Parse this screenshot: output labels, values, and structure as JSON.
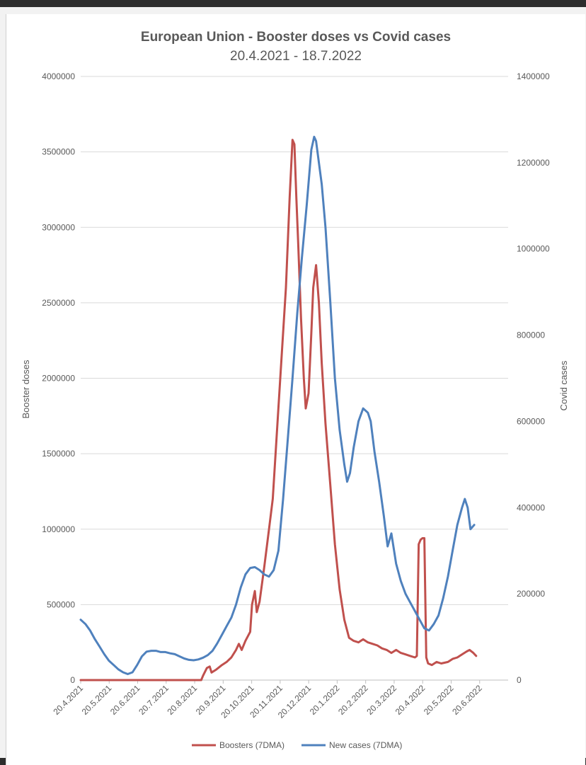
{
  "chart_data": {
    "type": "line",
    "title": "European Union - Booster doses vs Covid cases",
    "subtitle": "20.4.2021 - 18.7.2022",
    "ylabel": "Booster doses",
    "y2label": "Covid cases",
    "ylim": [
      0,
      4000000
    ],
    "y2lim": [
      0,
      1400000
    ],
    "yticks": [
      "0",
      "500000",
      "1000000",
      "1500000",
      "2000000",
      "2500000",
      "3000000",
      "3500000",
      "4000000"
    ],
    "y2ticks": [
      "0",
      "200000",
      "400000",
      "600000",
      "800000",
      "1000000",
      "1200000",
      "1400000"
    ],
    "x_categories": [
      "20.4.2021",
      "20.5.2021",
      "20.6.2021",
      "20.7.2021",
      "20.8.2021",
      "20.9.2021",
      "20.10.2021",
      "20.11.2021",
      "20.12.2021",
      "20.1.2022",
      "20.2.2022",
      "20.3.2022",
      "20.4.2022",
      "20.5.2022",
      "20.6.2022"
    ],
    "x_day_max": 454,
    "gridlines": "horizontal",
    "legend_position": "bottom",
    "series": [
      {
        "name": "Boosters (7DMA)",
        "axis": "left",
        "color": "#c0504d",
        "points": [
          [
            0,
            0
          ],
          [
            122,
            0
          ],
          [
            128,
            0
          ],
          [
            130,
            30000
          ],
          [
            134,
            80000
          ],
          [
            137,
            90000
          ],
          [
            139,
            50000
          ],
          [
            144,
            70000
          ],
          [
            150,
            100000
          ],
          [
            155,
            120000
          ],
          [
            160,
            150000
          ],
          [
            165,
            200000
          ],
          [
            168,
            240000
          ],
          [
            171,
            200000
          ],
          [
            175,
            260000
          ],
          [
            180,
            320000
          ],
          [
            182,
            500000
          ],
          [
            185,
            590000
          ],
          [
            187,
            450000
          ],
          [
            190,
            520000
          ],
          [
            195,
            750000
          ],
          [
            200,
            1000000
          ],
          [
            204,
            1200000
          ],
          [
            208,
            1600000
          ],
          [
            212,
            2000000
          ],
          [
            215,
            2300000
          ],
          [
            218,
            2600000
          ],
          [
            222,
            3200000
          ],
          [
            225,
            3580000
          ],
          [
            227,
            3550000
          ],
          [
            229,
            3200000
          ],
          [
            231,
            2900000
          ],
          [
            234,
            2400000
          ],
          [
            237,
            2000000
          ],
          [
            239,
            1800000
          ],
          [
            242,
            1900000
          ],
          [
            245,
            2300000
          ],
          [
            247,
            2600000
          ],
          [
            250,
            2750000
          ],
          [
            253,
            2500000
          ],
          [
            256,
            2100000
          ],
          [
            260,
            1700000
          ],
          [
            265,
            1300000
          ],
          [
            270,
            900000
          ],
          [
            275,
            600000
          ],
          [
            280,
            400000
          ],
          [
            285,
            280000
          ],
          [
            290,
            260000
          ],
          [
            295,
            250000
          ],
          [
            300,
            270000
          ],
          [
            305,
            250000
          ],
          [
            310,
            240000
          ],
          [
            315,
            230000
          ],
          [
            320,
            210000
          ],
          [
            325,
            200000
          ],
          [
            330,
            180000
          ],
          [
            335,
            200000
          ],
          [
            340,
            180000
          ],
          [
            345,
            170000
          ],
          [
            350,
            160000
          ],
          [
            355,
            150000
          ],
          [
            357,
            160000
          ],
          [
            359,
            900000
          ],
          [
            361,
            930000
          ],
          [
            363,
            940000
          ],
          [
            365,
            940000
          ],
          [
            367,
            150000
          ],
          [
            369,
            110000
          ],
          [
            373,
            100000
          ],
          [
            378,
            120000
          ],
          [
            383,
            110000
          ],
          [
            390,
            120000
          ],
          [
            395,
            140000
          ],
          [
            400,
            150000
          ],
          [
            405,
            170000
          ],
          [
            410,
            190000
          ],
          [
            413,
            200000
          ],
          [
            417,
            180000
          ],
          [
            420,
            160000
          ]
        ]
      },
      {
        "name": "New cases (7DMA)",
        "axis": "right",
        "color": "#4f81bd",
        "points": [
          [
            0,
            140000
          ],
          [
            5,
            130000
          ],
          [
            10,
            115000
          ],
          [
            15,
            95000
          ],
          [
            20,
            78000
          ],
          [
            25,
            60000
          ],
          [
            30,
            45000
          ],
          [
            35,
            35000
          ],
          [
            40,
            25000
          ],
          [
            45,
            18000
          ],
          [
            50,
            14000
          ],
          [
            55,
            18000
          ],
          [
            60,
            35000
          ],
          [
            65,
            55000
          ],
          [
            70,
            66000
          ],
          [
            75,
            68000
          ],
          [
            80,
            68000
          ],
          [
            85,
            65000
          ],
          [
            90,
            65000
          ],
          [
            95,
            62000
          ],
          [
            100,
            60000
          ],
          [
            105,
            55000
          ],
          [
            110,
            50000
          ],
          [
            115,
            47000
          ],
          [
            120,
            46000
          ],
          [
            125,
            48000
          ],
          [
            130,
            52000
          ],
          [
            135,
            58000
          ],
          [
            140,
            68000
          ],
          [
            145,
            85000
          ],
          [
            150,
            105000
          ],
          [
            155,
            125000
          ],
          [
            160,
            145000
          ],
          [
            165,
            175000
          ],
          [
            170,
            215000
          ],
          [
            175,
            245000
          ],
          [
            180,
            260000
          ],
          [
            185,
            262000
          ],
          [
            190,
            255000
          ],
          [
            195,
            245000
          ],
          [
            200,
            240000
          ],
          [
            205,
            255000
          ],
          [
            210,
            300000
          ],
          [
            215,
            420000
          ],
          [
            220,
            560000
          ],
          [
            225,
            700000
          ],
          [
            230,
            850000
          ],
          [
            235,
            980000
          ],
          [
            240,
            1100000
          ],
          [
            245,
            1230000
          ],
          [
            248,
            1260000
          ],
          [
            250,
            1250000
          ],
          [
            253,
            1200000
          ],
          [
            256,
            1150000
          ],
          [
            260,
            1050000
          ],
          [
            265,
            880000
          ],
          [
            270,
            700000
          ],
          [
            275,
            580000
          ],
          [
            280,
            500000
          ],
          [
            283,
            460000
          ],
          [
            286,
            480000
          ],
          [
            290,
            540000
          ],
          [
            295,
            600000
          ],
          [
            300,
            630000
          ],
          [
            305,
            620000
          ],
          [
            308,
            600000
          ],
          [
            312,
            530000
          ],
          [
            317,
            460000
          ],
          [
            322,
            380000
          ],
          [
            326,
            310000
          ],
          [
            330,
            340000
          ],
          [
            335,
            270000
          ],
          [
            340,
            230000
          ],
          [
            345,
            200000
          ],
          [
            350,
            180000
          ],
          [
            355,
            160000
          ],
          [
            360,
            140000
          ],
          [
            365,
            120000
          ],
          [
            370,
            115000
          ],
          [
            375,
            130000
          ],
          [
            380,
            150000
          ],
          [
            385,
            190000
          ],
          [
            390,
            240000
          ],
          [
            395,
            300000
          ],
          [
            400,
            360000
          ],
          [
            405,
            400000
          ],
          [
            408,
            420000
          ],
          [
            411,
            400000
          ],
          [
            414,
            350000
          ],
          [
            418,
            360000
          ]
        ]
      }
    ]
  }
}
